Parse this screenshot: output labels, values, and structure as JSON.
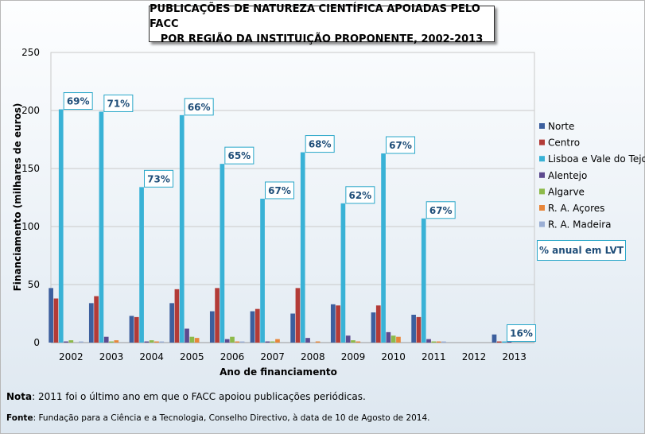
{
  "title_line1": "PUBLICAÇÕES DE NATUREZA CIENTÍFICA APOIADAS PELO FACC",
  "title_line2": "POR REGIÃO DA INSTITUIÇÃO PROPONENTE, 2002-2013",
  "pct_legend_label": "% anual em LVT",
  "note_label": "Nota",
  "note_text": ": 2011 foi o último ano em que o FACC apoiou publicações periódicas.",
  "source_label": "Fonte",
  "source_text": ": Fundação para a Ciência e a Tecnologia, Conselho Directivo, à data de 10 de Agosto de 2014.",
  "chart_data": {
    "type": "bar",
    "title": "PUBLICAÇÕES DE NATUREZA CIENTÍFICA APOIADAS PELO FACC POR REGIÃO DA INSTITUIÇÃO PROPONENTE, 2002-2013",
    "xlabel": "Ano de financiamento",
    "ylabel": "Financiamento (milhares de euros)",
    "ylim": [
      0,
      250
    ],
    "yticks": [
      0,
      50,
      100,
      150,
      200,
      250
    ],
    "grid": true,
    "legend_position": "right",
    "categories": [
      "2002",
      "2003",
      "2004",
      "2005",
      "2006",
      "2007",
      "2008",
      "2009",
      "2010",
      "2011",
      "2012",
      "2013"
    ],
    "series": [
      {
        "name": "Norte",
        "color": "#3c5f9e",
        "values": [
          47,
          34,
          23,
          34,
          27,
          27,
          25,
          33,
          26,
          24,
          0,
          7
        ]
      },
      {
        "name": "Centro",
        "color": "#b33b37",
        "values": [
          38,
          40,
          22,
          46,
          47,
          29,
          47,
          32,
          32,
          22,
          0,
          1
        ]
      },
      {
        "name": "Lisboa e Vale do Tejo",
        "color": "#39b2d6",
        "values": [
          201,
          199,
          134,
          196,
          154,
          124,
          164,
          120,
          163,
          107,
          0,
          1
        ]
      },
      {
        "name": "Alentejo",
        "color": "#5d4a8f",
        "values": [
          1,
          5,
          1,
          12,
          3,
          1,
          4,
          6,
          9,
          3,
          0,
          1
        ]
      },
      {
        "name": "Algarve",
        "color": "#8dba4a",
        "values": [
          2,
          1,
          2,
          5,
          5,
          1,
          0,
          2,
          6,
          1,
          0,
          0
        ]
      },
      {
        "name": "R. A. Açores",
        "color": "#e8863a",
        "values": [
          0,
          2,
          1,
          4,
          1,
          3,
          1,
          1,
          5,
          1,
          0,
          0
        ]
      },
      {
        "name": "R. A. Madeira",
        "color": "#9aaed4",
        "values": [
          1,
          0,
          1,
          0,
          1,
          0,
          0,
          0,
          0,
          1,
          0,
          0
        ]
      }
    ],
    "annotations": [
      "69%",
      "71%",
      "73%",
      "66%",
      "65%",
      "67%",
      "68%",
      "62%",
      "67%",
      "67%",
      "",
      "16%"
    ]
  }
}
